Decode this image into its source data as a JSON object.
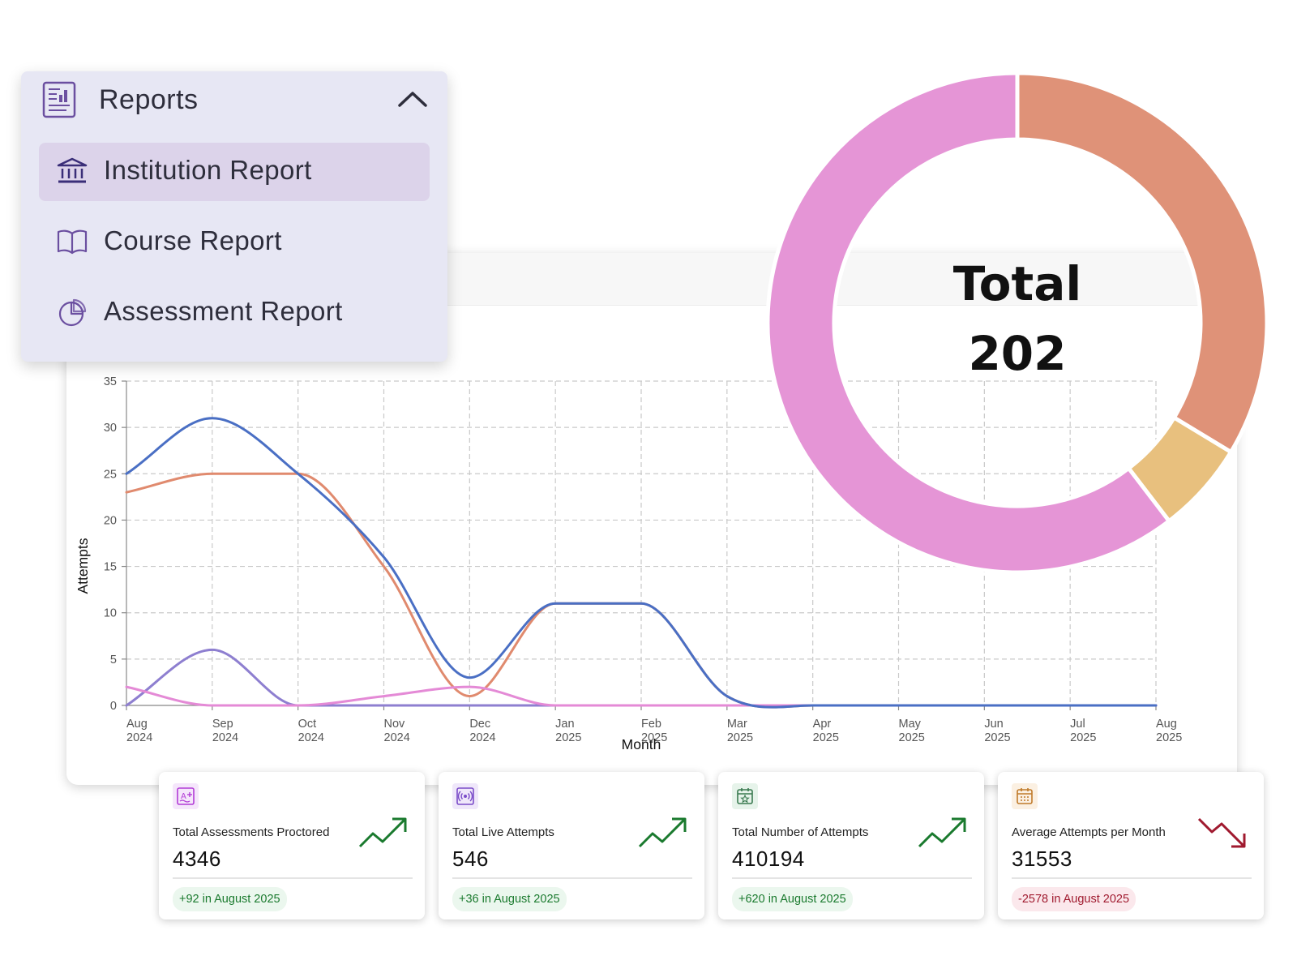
{
  "menu": {
    "title": "Reports",
    "header_icon": "report-document-icon",
    "collapse_icon": "chevron-up-icon",
    "items": [
      {
        "label": "Institution Report",
        "icon": "institution-icon",
        "active": true
      },
      {
        "label": "Course Report",
        "icon": "book-open-icon",
        "active": false
      },
      {
        "label": "Assessment Report",
        "icon": "pie-chart-icon",
        "active": false
      }
    ]
  },
  "chart_data": [
    {
      "type": "line",
      "xlabel": "Month",
      "ylabel": "Attempts",
      "ylim": [
        0,
        35
      ],
      "yticks": [
        0,
        5,
        10,
        15,
        20,
        25,
        30,
        35
      ],
      "grid": true,
      "categories": [
        [
          "Aug",
          "2024"
        ],
        [
          "Sep",
          "2024"
        ],
        [
          "Oct",
          "2024"
        ],
        [
          "Nov",
          "2024"
        ],
        [
          "Dec",
          "2024"
        ],
        [
          "Jan",
          "2025"
        ],
        [
          "Feb",
          "2025"
        ],
        [
          "Mar",
          "2025"
        ],
        [
          "Apr",
          "2025"
        ],
        [
          "May",
          "2025"
        ],
        [
          "Jun",
          "2025"
        ],
        [
          "Jul",
          "2025"
        ],
        [
          "Aug",
          "2025"
        ]
      ],
      "series": [
        {
          "color": "#e08a6e",
          "values": [
            23,
            25,
            25,
            15,
            1,
            11,
            11,
            1,
            0,
            0,
            0,
            0,
            0
          ]
        },
        {
          "color": "#8e7fd0",
          "values": [
            0,
            6,
            0,
            0,
            0,
            0,
            0,
            0,
            0,
            0,
            0,
            0,
            0
          ]
        },
        {
          "color": "#e48ad6",
          "values": [
            2,
            0,
            0,
            1,
            2,
            0,
            0,
            0,
            0,
            0,
            0,
            0,
            0
          ]
        },
        {
          "color": "#4a6fc4",
          "values": [
            25,
            31,
            25,
            16,
            3,
            11,
            11,
            1,
            0,
            0,
            0,
            0,
            0
          ]
        }
      ]
    },
    {
      "type": "pie",
      "center_label": "Total",
      "center_value": "202",
      "slices": [
        {
          "value": 68,
          "color": "#df9278"
        },
        {
          "value": 12,
          "color": "#e8c07e"
        },
        {
          "value": 122,
          "color": "#e595d6"
        }
      ]
    }
  ],
  "cards": [
    {
      "title": "Total Assessments Proctored",
      "value": "4346",
      "delta": "+92 in August 2025",
      "trend": "up",
      "icon": "grade-certificate-icon",
      "icon_color": "#b23bd6"
    },
    {
      "title": "Total Live Attempts",
      "value": "546",
      "delta": "+36 in August 2025",
      "trend": "up",
      "icon": "broadcast-icon",
      "icon_color": "#7a4bc8"
    },
    {
      "title": "Total Number of Attempts",
      "value": "410194",
      "delta": "+620 in August 2025",
      "trend": "up",
      "icon": "calendar-star-icon",
      "icon_color": "#3a7a50"
    },
    {
      "title": "Average Attempts per Month",
      "value": "31553",
      "delta": "-2578 in August 2025",
      "trend": "down",
      "icon": "calendar-grid-icon",
      "icon_color": "#c07a2a"
    }
  ],
  "colors": {
    "trend_up": "#1a7a2e",
    "trend_down": "#a01a2f",
    "menu_bg": "#e7e7f4",
    "menu_active": "#dcd3ea",
    "menu_icon": "#6b4fa0"
  }
}
